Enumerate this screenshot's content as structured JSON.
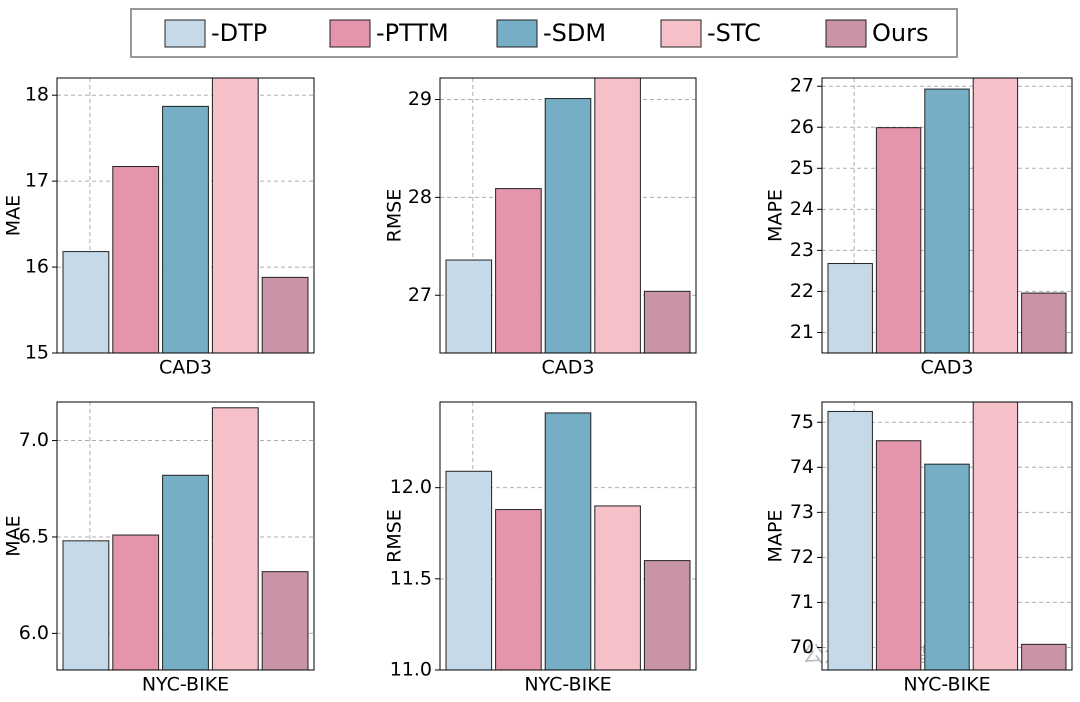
{
  "legend": [
    {
      "name": "-DTP",
      "color": "#c5d9e8"
    },
    {
      "name": "-PTTM",
      "color": "#e495ab"
    },
    {
      "name": "-SDM",
      "color": "#76aec5"
    },
    {
      "name": "-STC",
      "color": "#f5c0c8"
    },
    {
      "name": "Ours",
      "color": "#c994a8"
    }
  ],
  "watermark": "公众号 · 新智元",
  "chart_data": [
    {
      "type": "bar",
      "xlabel": "CAD3",
      "ylabel": "MAE",
      "values": [
        16.18,
        17.17,
        17.87,
        18.3,
        15.88
      ],
      "ylim": [
        15,
        18.2
      ],
      "yticks": [
        15,
        16,
        17,
        18
      ],
      "grid": true
    },
    {
      "type": "bar",
      "xlabel": "CAD3",
      "ylabel": "RMSE",
      "values": [
        27.36,
        28.09,
        29.01,
        29.3,
        27.04
      ],
      "ylim": [
        26.41,
        29.22
      ],
      "yticks": [
        27,
        28,
        29
      ],
      "grid": true
    },
    {
      "type": "bar",
      "xlabel": "CAD3",
      "ylabel": "MAPE",
      "values": [
        22.68,
        25.99,
        26.93,
        27.5,
        21.96
      ],
      "ylim": [
        20.5,
        27.2
      ],
      "yticks": [
        21,
        22,
        23,
        24,
        25,
        26,
        27
      ],
      "grid": true
    },
    {
      "type": "bar",
      "xlabel": "NYC-BIKE",
      "ylabel": "MAE",
      "values": [
        6.48,
        6.51,
        6.82,
        7.17,
        6.32
      ],
      "ylim": [
        5.81,
        7.2
      ],
      "yticks": [
        {
          "value": 6,
          "label": "6.0"
        },
        6.5,
        {
          "value": 7,
          "label": "7.0"
        }
      ],
      "grid": true
    },
    {
      "type": "bar",
      "xlabel": "NYC-BIKE",
      "ylabel": "RMSE",
      "values": [
        12.09,
        11.88,
        12.41,
        11.9,
        11.6
      ],
      "ylim": [
        11,
        12.47
      ],
      "yticks": [
        {
          "value": 11,
          "label": "11.0"
        },
        11.5,
        {
          "value": 12,
          "label": "12.0"
        }
      ],
      "grid": true
    },
    {
      "type": "bar",
      "xlabel": "NYC-BIKE",
      "ylabel": "MAPE",
      "values": [
        75.24,
        74.59,
        74.07,
        75.6,
        70.07
      ],
      "ylim": [
        69.5,
        75.45
      ],
      "yticks": [
        70,
        71,
        72,
        73,
        74,
        75
      ],
      "grid": true
    }
  ]
}
